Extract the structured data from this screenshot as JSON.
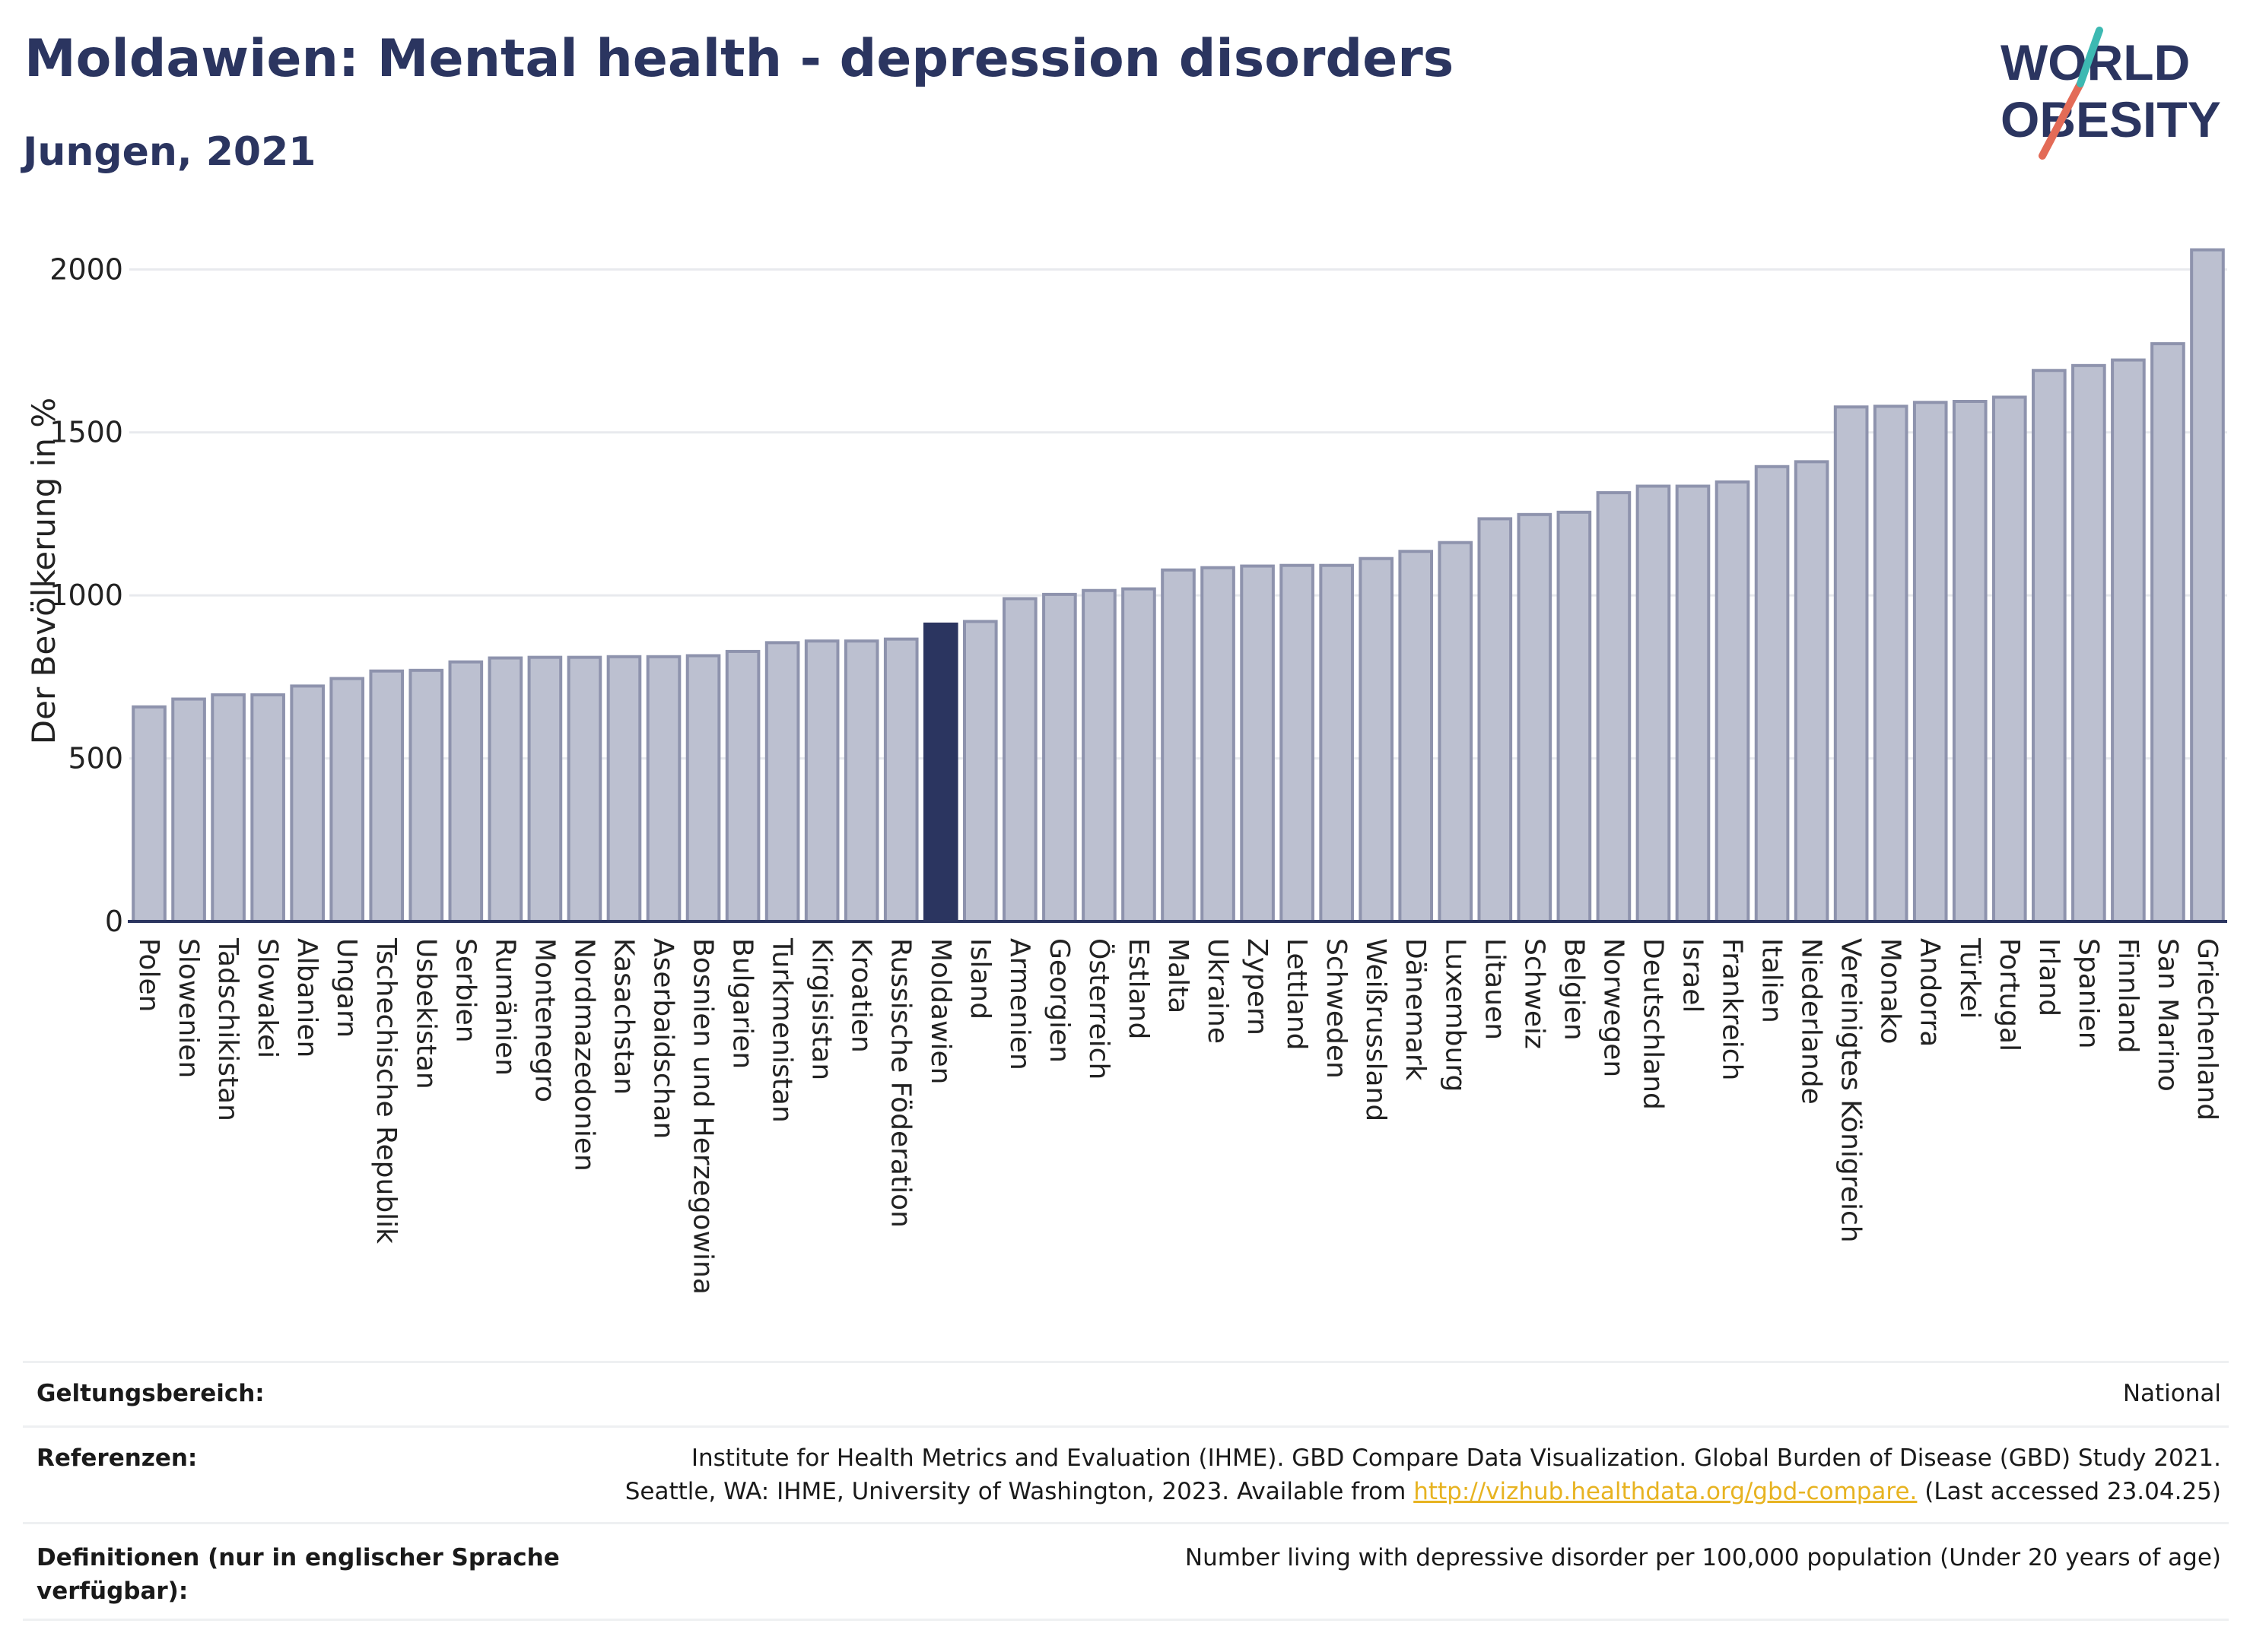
{
  "header": {
    "title": "Moldawien: Mental health - depression disorders",
    "subtitle": "Jungen, 2021"
  },
  "logo": {
    "line1": "WORLD",
    "line2": "OBESITY"
  },
  "chart_data": {
    "type": "bar",
    "ylabel": "Der Bevölkerung in %",
    "xlabel": "",
    "ylim": [
      0,
      2150
    ],
    "yticks": [
      0,
      500,
      1000,
      1500,
      2000
    ],
    "grid": true,
    "highlight": "Moldawien",
    "colors": {
      "bar": "#bcc0d0",
      "bar_edge": "#8e93ad",
      "highlight": "#2b3560",
      "axis": "#2b3560",
      "grid": "#e8eaee"
    },
    "categories": [
      "Polen",
      "Slowenien",
      "Tadschikistan",
      "Slowakei",
      "Albanien",
      "Ungarn",
      "Tschechische Republik",
      "Usbekistan",
      "Serbien",
      "Rumänien",
      "Montenegro",
      "Nordmazedonien",
      "Kasachstan",
      "Aserbaidschan",
      "Bosnien und Herzegowina",
      "Bulgarien",
      "Turkmenistan",
      "Kirgisistan",
      "Kroatien",
      "Russische Föderation",
      "Moldawien",
      "Island",
      "Armenien",
      "Georgien",
      "Österreich",
      "Estland",
      "Malta",
      "Ukraine",
      "Zypern",
      "Lettland",
      "Schweden",
      "Weißrussland",
      "Dänemark",
      "Luxemburg",
      "Litauen",
      "Schweiz",
      "Belgien",
      "Norwegen",
      "Deutschland",
      "Israel",
      "Frankreich",
      "Italien",
      "Niederlande",
      "Vereinigtes Königreich",
      "Monako",
      "Andorra",
      "Türkei",
      "Portugal",
      "Irland",
      "Spanien",
      "Finnland",
      "San Marino",
      "Griechenland"
    ],
    "values": [
      658,
      682,
      695,
      695,
      722,
      745,
      768,
      770,
      796,
      808,
      810,
      810,
      812,
      812,
      815,
      828,
      855,
      860,
      860,
      866,
      912,
      920,
      990,
      1003,
      1015,
      1020,
      1078,
      1085,
      1090,
      1092,
      1092,
      1113,
      1135,
      1162,
      1235,
      1248,
      1255,
      1315,
      1335,
      1335,
      1348,
      1395,
      1410,
      1578,
      1580,
      1592,
      1595,
      1608,
      1690,
      1705,
      1722,
      1772,
      2060
    ]
  },
  "meta": [
    {
      "label": "Geltungsbereich:",
      "lines": [
        "National"
      ]
    },
    {
      "label": "Referenzen:",
      "lines": [
        "Institute for Health Metrics and Evaluation (IHME). GBD Compare Data Visualization. Global Burden of Disease (GBD) Study 2021.",
        "Seattle, WA: IHME, University of Washington, 2023. Available from "
      ],
      "link": "http://vizhub.healthdata.org/gbd-compare.",
      "after_link": " (Last accessed 23.04.25)"
    },
    {
      "label": "Definitionen (nur in englischer Sprache verfügbar):",
      "lines": [
        "Number living with depressive disorder per 100,000 population (Under 20 years of age)"
      ]
    }
  ]
}
